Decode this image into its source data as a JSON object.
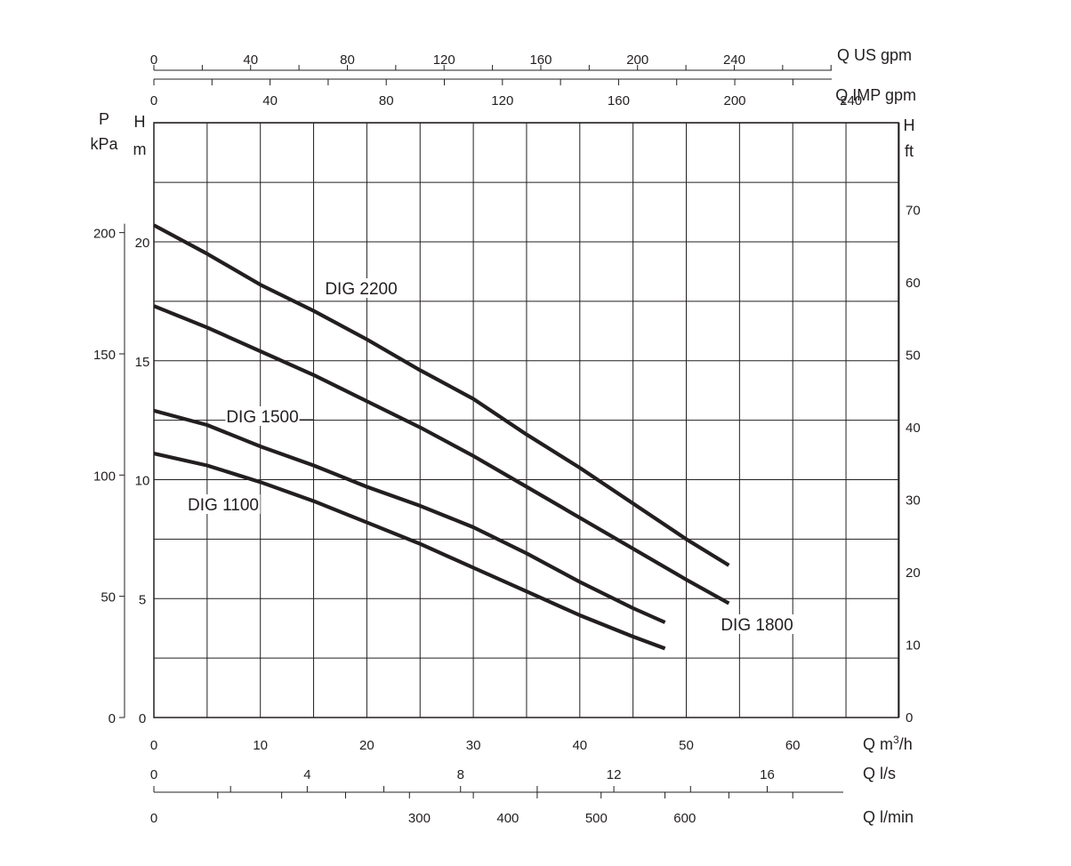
{
  "chart_data": {
    "type": "line",
    "x": {
      "quantity": "Q",
      "unit": "m³/h",
      "label_q": "Q m",
      "label_sup": "3",
      "label_unit": "/h",
      "ticks": [
        0,
        10,
        20,
        30,
        40,
        50,
        60
      ],
      "range": [
        0,
        65
      ]
    },
    "y": {
      "quantity": "H",
      "unit": "m",
      "label_h": "H",
      "label_unit": "m",
      "ticks": [
        0,
        5,
        10,
        15,
        20
      ],
      "range": [
        0,
        25
      ]
    },
    "secondary_axes": {
      "pressure_left": {
        "label_p": "P",
        "label_unit": "kPa",
        "ticks": [
          0,
          50,
          100,
          150,
          200
        ]
      },
      "head_ft_right": {
        "label_h": "H",
        "label_unit": "ft",
        "ticks": [
          0,
          10,
          20,
          30,
          40,
          50,
          60,
          70
        ]
      },
      "us_gpm_top": {
        "label": "Q US gpm",
        "ticks": [
          0,
          40,
          80,
          120,
          160,
          200,
          240
        ]
      },
      "imp_gpm_top": {
        "label": "Q IMP gpm",
        "ticks": [
          0,
          40,
          80,
          120,
          160,
          200,
          240
        ]
      },
      "l_per_s_bottom": {
        "label": "Q l/s",
        "ticks": [
          0,
          4,
          8,
          12,
          16
        ]
      },
      "l_per_min_bottom": {
        "label": "Q l/min",
        "ticks": [
          0,
          300,
          400,
          500,
          600
        ]
      }
    },
    "grid": true,
    "series": [
      {
        "name": "DIG 2200",
        "color": "#231f20",
        "points": [
          [
            0,
            20.7
          ],
          [
            5,
            19.5
          ],
          [
            10,
            18.2
          ],
          [
            15,
            17.1
          ],
          [
            20,
            15.9
          ],
          [
            25,
            14.6
          ],
          [
            30,
            13.4
          ],
          [
            35,
            11.9
          ],
          [
            40,
            10.5
          ],
          [
            45,
            9.0
          ],
          [
            50,
            7.5
          ],
          [
            54,
            6.4
          ]
        ]
      },
      {
        "name": "DIG 1800",
        "color": "#231f20",
        "points": [
          [
            0,
            17.3
          ],
          [
            5,
            16.4
          ],
          [
            10,
            15.4
          ],
          [
            15,
            14.4
          ],
          [
            20,
            13.3
          ],
          [
            25,
            12.2
          ],
          [
            30,
            11.0
          ],
          [
            35,
            9.7
          ],
          [
            40,
            8.4
          ],
          [
            45,
            7.1
          ],
          [
            50,
            5.8
          ],
          [
            54,
            4.8
          ]
        ]
      },
      {
        "name": "DIG 1500",
        "color": "#231f20",
        "points": [
          [
            0,
            12.9
          ],
          [
            5,
            12.3
          ],
          [
            10,
            11.4
          ],
          [
            15,
            10.6
          ],
          [
            20,
            9.7
          ],
          [
            25,
            8.9
          ],
          [
            30,
            8.0
          ],
          [
            35,
            6.9
          ],
          [
            40,
            5.7
          ],
          [
            45,
            4.6
          ],
          [
            48,
            4.0
          ]
        ]
      },
      {
        "name": "DIG 1100",
        "color": "#231f20",
        "points": [
          [
            0,
            11.1
          ],
          [
            5,
            10.6
          ],
          [
            10,
            9.9
          ],
          [
            15,
            9.1
          ],
          [
            20,
            8.2
          ],
          [
            25,
            7.3
          ],
          [
            30,
            6.3
          ],
          [
            35,
            5.3
          ],
          [
            40,
            4.3
          ],
          [
            45,
            3.4
          ],
          [
            48,
            2.9
          ]
        ]
      }
    ]
  }
}
